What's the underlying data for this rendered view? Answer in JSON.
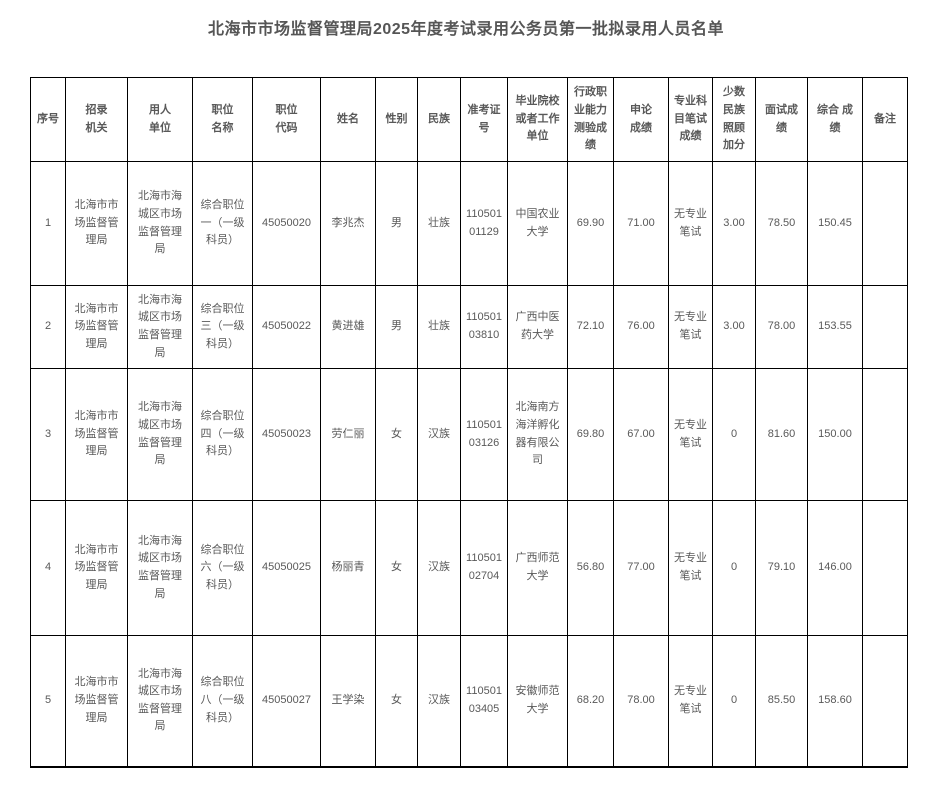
{
  "page_title": "北海市市场监督管理局2025年度考试录用公务员第一批拟录用人员名单",
  "table": {
    "columns": [
      "序号",
      "招录\n机关",
      "用人\n单位",
      "职位\n名称",
      "职位\n代码",
      "姓名",
      "性别",
      "民族",
      "准考证\n号",
      "毕业院校\n或者工作\n单位",
      "行政职\n业能力\n测验成\n绩",
      "申论\n成绩",
      "专业科\n目笔试\n成绩",
      "少数\n民族\n照顾\n加分",
      "面试成\n绩",
      "综合 成\n绩",
      "备注"
    ],
    "rows": [
      [
        "1",
        "北海市市\n场监督管\n理局",
        "北海市海\n城区市场\n监督管理\n局",
        "综合职位\n一（一级\n科员）",
        "45050020",
        "李兆杰",
        "男",
        "壮族",
        "110501\n01129",
        "中国农业\n大学",
        "69.90",
        "71.00",
        "无专业\n笔试",
        "3.00",
        "78.50",
        "150.45",
        ""
      ],
      [
        "2",
        "北海市市\n场监督管\n理局",
        "北海市海\n城区市场\n监督管理\n局",
        "综合职位\n三（一级\n科员）",
        "45050022",
        "黄进雄",
        "男",
        "壮族",
        "110501\n03810",
        "广西中医\n药大学",
        "72.10",
        "76.00",
        "无专业\n笔试",
        "3.00",
        "78.00",
        "153.55",
        ""
      ],
      [
        "3",
        "北海市市\n场监督管\n理局",
        "北海市海\n城区市场\n监督管理\n局",
        "综合职位\n四（一级\n科员）",
        "45050023",
        "劳仁丽",
        "女",
        "汉族",
        "110501\n03126",
        "北海南方\n海洋孵化\n器有限公\n司",
        "69.80",
        "67.00",
        "无专业\n笔试",
        "0",
        "81.60",
        "150.00",
        ""
      ],
      [
        "4",
        "北海市市\n场监督管\n理局",
        "北海市海\n城区市场\n监督管理\n局",
        "综合职位\n六（一级\n科员）",
        "45050025",
        "杨丽青",
        "女",
        "汉族",
        "110501\n02704",
        "广西师范\n大学",
        "56.80",
        "77.00",
        "无专业\n笔试",
        "0",
        "79.10",
        "146.00",
        ""
      ],
      [
        "5",
        "北海市市\n场监督管\n理局",
        "北海市海\n城区市场\n监督管理\n局",
        "综合职位\n八（一级\n科员）",
        "45050027",
        "王学染",
        "女",
        "汉族",
        "110501\n03405",
        "安徽师范\n大学",
        "68.20",
        "78.00",
        "无专业\n笔试",
        "0",
        "85.50",
        "158.60",
        ""
      ]
    ]
  }
}
